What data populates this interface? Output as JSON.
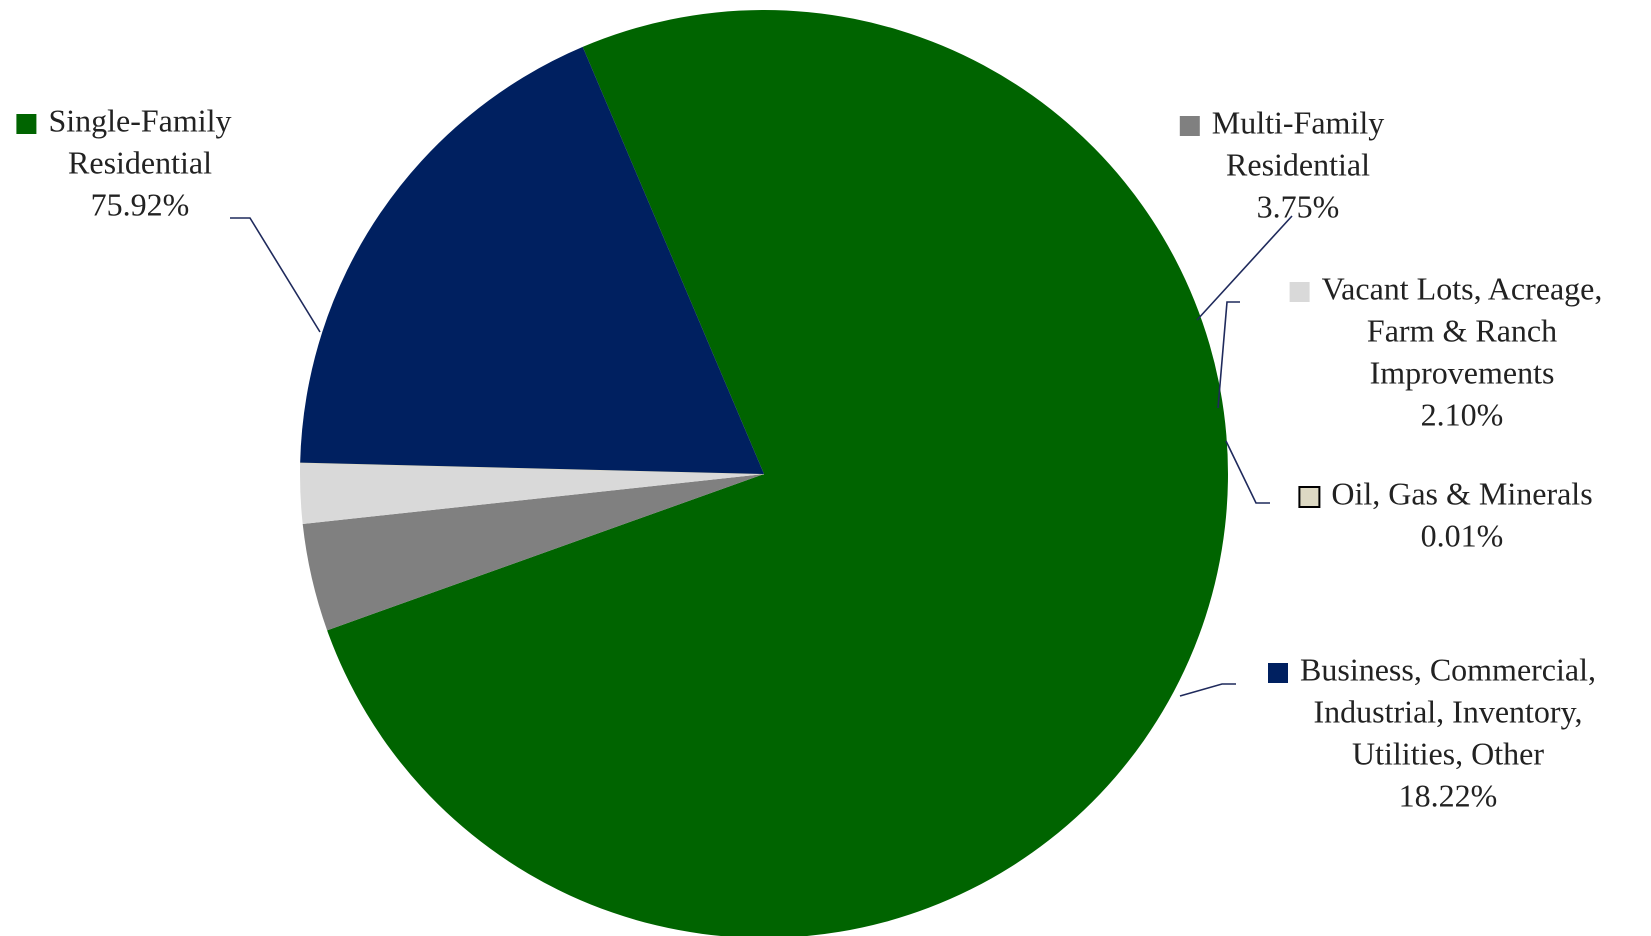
{
  "chart_data": {
    "type": "pie",
    "title": "",
    "legend": "none",
    "slices": [
      {
        "name": "Single-Family Residential",
        "name_lines": [
          "Single-Family",
          "Residential"
        ],
        "value": 75.92,
        "value_label": "75.92%",
        "color": "#006400"
      },
      {
        "name": "Multi-Family Residential",
        "name_lines": [
          "Multi-Family",
          "Residential"
        ],
        "value": 3.75,
        "value_label": "3.75%",
        "color": "#808080"
      },
      {
        "name": "Vacant Lots, Acreage, Farm & Ranch Improvements",
        "name_lines": [
          "Vacant Lots, Acreage,",
          "Farm & Ranch",
          "Improvements"
        ],
        "value": 2.1,
        "value_label": "2.10%",
        "color": "#D9D9D9"
      },
      {
        "name": "Oil, Gas & Minerals",
        "name_lines": [
          "Oil, Gas & Minerals"
        ],
        "value": 0.01,
        "value_label": "0.01%",
        "color": "#DDD9C3"
      },
      {
        "name": "Business, Commercial, Industrial, Inventory, Utilities, Other",
        "name_lines": [
          "Business, Commercial,",
          "Industrial, Inventory,",
          "Utilities, Other"
        ],
        "value": 18.22,
        "value_label": "18.22%",
        "color": "#002060"
      }
    ]
  }
}
